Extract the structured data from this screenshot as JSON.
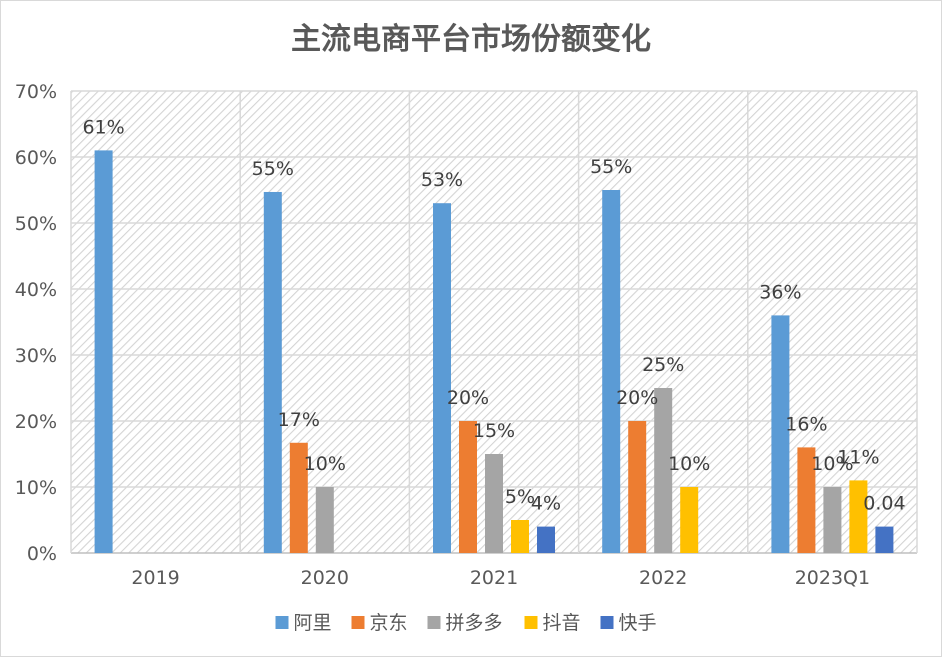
{
  "chart_data": {
    "type": "bar",
    "title": "主流电商平台市场份额变化",
    "categories": [
      "2019",
      "2020",
      "2021",
      "2022",
      "2023Q1"
    ],
    "ylim": [
      0,
      70
    ],
    "y_ticks": [
      "0%",
      "10%",
      "20%",
      "30%",
      "40%",
      "50%",
      "60%",
      "70%"
    ],
    "grid": true,
    "legend_position": "bottom",
    "series": [
      {
        "name": "阿里",
        "color": "#5b9bd5",
        "values": [
          61,
          54.7,
          53,
          55,
          36
        ],
        "labels": [
          "61%",
          "55%",
          "53%",
          "55%",
          "36%"
        ]
      },
      {
        "name": "京东",
        "color": "#ed7d31",
        "values": [
          null,
          16.7,
          20,
          20,
          16
        ],
        "labels": [
          null,
          "17%",
          "20%",
          "20%",
          "16%"
        ]
      },
      {
        "name": "拼多多",
        "color": "#a5a5a5",
        "values": [
          null,
          10,
          15,
          25,
          10
        ],
        "labels": [
          null,
          "10%",
          "15%",
          "25%",
          "10%"
        ]
      },
      {
        "name": "抖音",
        "color": "#ffc000",
        "values": [
          null,
          null,
          5,
          10,
          11
        ],
        "labels": [
          null,
          null,
          "5%",
          "10%",
          "11%"
        ]
      },
      {
        "name": "快手",
        "color": "#4472c4",
        "values": [
          null,
          null,
          4,
          null,
          4
        ],
        "labels": [
          null,
          null,
          "4%",
          null,
          "0.04"
        ]
      }
    ]
  }
}
